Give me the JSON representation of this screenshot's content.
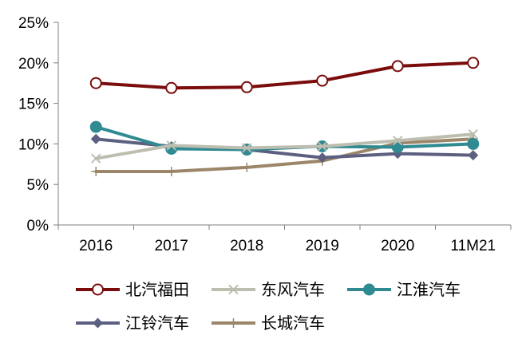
{
  "chart_data": {
    "type": "line",
    "title": "",
    "xlabel": "",
    "ylabel": "",
    "categories": [
      "2016",
      "2017",
      "2018",
      "2019",
      "2020",
      "11M21"
    ],
    "ylim": [
      0,
      25
    ],
    "yticks": [
      0,
      5,
      10,
      15,
      20,
      25
    ],
    "ytick_labels": [
      "0%",
      "5%",
      "10%",
      "15%",
      "20%",
      "25%"
    ],
    "grid": false,
    "legend_position": "bottom",
    "series": [
      {
        "name": "北汽福田",
        "color": "#7a0c0c",
        "marker": "open-circle",
        "values": [
          17.5,
          16.9,
          17.0,
          17.8,
          19.6,
          20.0
        ]
      },
      {
        "name": "东风汽车",
        "color": "#bdbdb0",
        "marker": "x",
        "values": [
          8.2,
          9.8,
          9.5,
          9.7,
          10.4,
          11.2
        ]
      },
      {
        "name": "江淮汽车",
        "color": "#2f8a92",
        "marker": "filled-circle",
        "values": [
          12.1,
          9.4,
          9.3,
          9.7,
          9.6,
          10.0
        ]
      },
      {
        "name": "江铃汽车",
        "color": "#5c5f80",
        "marker": "diamond",
        "values": [
          10.6,
          9.7,
          9.3,
          8.3,
          8.8,
          8.6
        ]
      },
      {
        "name": "长城汽车",
        "color": "#9b8669",
        "marker": "plus",
        "values": [
          6.6,
          6.6,
          7.1,
          7.9,
          10.1,
          10.6
        ]
      }
    ]
  }
}
